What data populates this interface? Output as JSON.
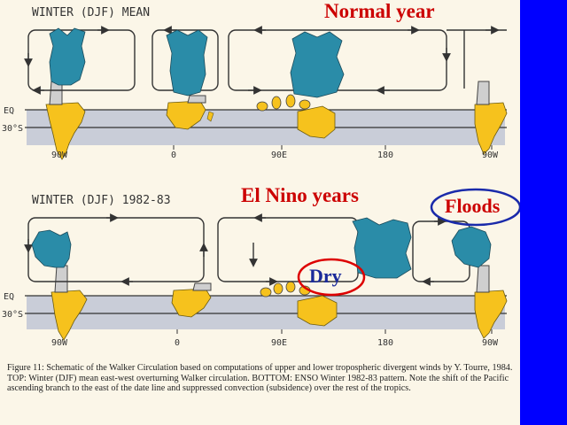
{
  "top_panel": {
    "title": "WINTER (DJF) MEAN",
    "label": "Normal year",
    "lat_eq": "EQ",
    "lat_30s": "30°S",
    "longitudes": [
      "90W",
      "0",
      "90E",
      "180",
      "90W"
    ]
  },
  "bottom_panel": {
    "title": "WINTER (DJF) 1982-83",
    "label": "El Nino years",
    "floods": "Floods",
    "dry": "Dry",
    "lat_eq": "EQ",
    "lat_30s": "30°S",
    "longitudes": [
      "90W",
      "0",
      "90E",
      "180",
      "90W"
    ]
  },
  "caption": "Figure 11: Schematic of the Walker Circulation based on computations of upper and lower tropospheric divergent winds by Y. Tourre, 1984. TOP: Winter (DJF) mean east-west overturning Walker circulation. BOTTOM: ENSO Winter 1982-83 pattern. Note the shift of the Pacific ascending branch to the east of the date line and suppressed convection (subsidence) over the rest of the tropics.",
  "colors": {
    "background": "#0000ff",
    "cloud": "#2a8ca8",
    "land": "#f6c21d",
    "ocean": "#c9cdd8",
    "label_red": "#cc0000",
    "label_blue": "#1a2a9a"
  }
}
